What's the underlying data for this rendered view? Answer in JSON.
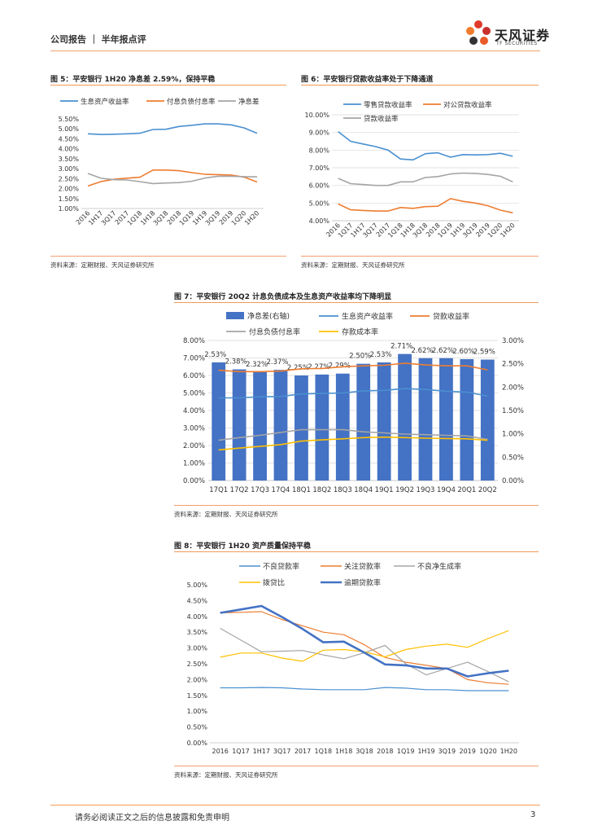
{
  "header": {
    "title": "公司报告 ｜ 半年报点评",
    "logo_cn": "天风证券",
    "logo_en": "TF SECURITIES"
  },
  "colors": {
    "blue": "#4a90d0",
    "orange": "#ed7d31",
    "gray": "#a5a5a5",
    "yellow": "#ffc000",
    "darkblue": "#4472c4",
    "accent": "#f29a5a"
  },
  "footer": {
    "disclaimer": "请务必阅读正文之后的信息披露和免责申明",
    "page": "3"
  },
  "figures": {
    "fig5": {
      "title": "图 5：平安银行 1H20 净息差 2.59%，保持平稳",
      "source": "资料来源：定期财报、天风证券研究所"
    },
    "fig6": {
      "title": "图 6：平安银行贷款收益率处于下降通道",
      "source": "资料来源：定期财报、天风证券研究所"
    },
    "fig7": {
      "title": "图 7：平安银行 20Q2 计息负债成本及生息资产收益率均下降明显",
      "source": "资料来源：定期财报、天风证券研究所"
    },
    "fig8": {
      "title": "图 8：平安银行 1H20 资产质量保持平稳",
      "source": "资料来源：定期财报、天风证券研究所"
    }
  },
  "chart_data": [
    {
      "id": "fig5",
      "type": "line",
      "categories": [
        "2016",
        "1H17",
        "3Q17",
        "2017",
        "1Q18",
        "1H18",
        "3Q18",
        "2018",
        "1Q19",
        "1H19",
        "3Q19",
        "2019",
        "1Q20",
        "1H20"
      ],
      "yticks": [
        "5.50%",
        "5.00%",
        "4.50%",
        "4.00%",
        "3.50%",
        "3.00%",
        "2.50%",
        "2.00%",
        "1.50%",
        "1.00%"
      ],
      "ylim": [
        1.0,
        5.5
      ],
      "series": [
        {
          "name": "生息资产收益率",
          "color": "#4a90d0",
          "values": [
            4.75,
            4.72,
            4.73,
            4.75,
            4.78,
            4.97,
            4.98,
            5.12,
            5.18,
            5.25,
            5.25,
            5.2,
            5.05,
            4.78
          ]
        },
        {
          "name": "付息负债付息率",
          "color": "#ed7d31",
          "values": [
            2.13,
            2.35,
            2.47,
            2.52,
            2.57,
            2.93,
            2.93,
            2.9,
            2.8,
            2.72,
            2.7,
            2.68,
            2.58,
            2.33
          ]
        },
        {
          "name": "净息差",
          "color": "#a5a5a5",
          "values": [
            2.76,
            2.52,
            2.45,
            2.43,
            2.35,
            2.25,
            2.28,
            2.3,
            2.37,
            2.53,
            2.62,
            2.62,
            2.6,
            2.59
          ]
        }
      ]
    },
    {
      "id": "fig6",
      "type": "line",
      "categories": [
        "2016",
        "1Q17",
        "1H17",
        "3Q17",
        "2017",
        "1Q18",
        "1H18",
        "3Q18",
        "2018",
        "1Q19",
        "1H19",
        "3Q19",
        "2019",
        "1Q20",
        "1H20"
      ],
      "yticks": [
        "10.00%",
        "9.00%",
        "8.00%",
        "7.00%",
        "6.00%",
        "5.00%",
        "4.00%"
      ],
      "ylim": [
        4.0,
        10.0
      ],
      "series": [
        {
          "name": "零售贷款收益率",
          "color": "#4a90d0",
          "values": [
            9.05,
            8.5,
            8.35,
            8.2,
            8.0,
            7.5,
            7.45,
            7.8,
            7.85,
            7.6,
            7.75,
            7.73,
            7.75,
            7.82,
            7.65
          ]
        },
        {
          "name": "对公贷款收益率",
          "color": "#ed7d31",
          "values": [
            4.95,
            4.62,
            4.58,
            4.55,
            4.55,
            4.75,
            4.7,
            4.8,
            4.82,
            5.25,
            5.1,
            5.0,
            4.85,
            4.6,
            4.45
          ]
        },
        {
          "name": "贷款收益率",
          "color": "#a5a5a5",
          "values": [
            6.4,
            6.1,
            6.05,
            6.0,
            6.0,
            6.2,
            6.2,
            6.45,
            6.5,
            6.65,
            6.7,
            6.68,
            6.62,
            6.52,
            6.2
          ]
        }
      ]
    },
    {
      "id": "fig7",
      "type": "bar+line",
      "categories": [
        "17Q1",
        "17Q2",
        "17Q3",
        "17Q4",
        "18Q1",
        "18Q2",
        "18Q3",
        "18Q4",
        "19Q1",
        "19Q2",
        "19Q3",
        "19Q4",
        "20Q1",
        "20Q2"
      ],
      "yticks_left": [
        "8.00%",
        "7.00%",
        "6.00%",
        "5.00%",
        "4.00%",
        "3.00%",
        "2.00%",
        "1.00%",
        "0.00%"
      ],
      "yticks_right": [
        "3.00%",
        "2.50%",
        "2.00%",
        "1.50%",
        "1.00%",
        "0.50%",
        "0.00%"
      ],
      "ylim_left": [
        0,
        8
      ],
      "ylim_right": [
        0,
        3
      ],
      "bars": {
        "name": "净息差(右轴)",
        "color": "#4472c4",
        "values": [
          2.53,
          2.38,
          2.32,
          2.37,
          2.25,
          2.27,
          2.29,
          2.5,
          2.53,
          2.71,
          2.62,
          2.62,
          2.6,
          2.59
        ],
        "labels": [
          "2.53%",
          "2.38%",
          "2.32%",
          "2.37%",
          "2.25%",
          "2.27%",
          "2.29%",
          "2.50%",
          "2.53%",
          "2.71%",
          "2.62%",
          "2.62%",
          "2.60%",
          "2.59%"
        ]
      },
      "series": [
        {
          "name": "生息资产收益率",
          "color": "#4a90d0",
          "values": [
            4.72,
            4.72,
            4.78,
            4.8,
            4.95,
            4.97,
            5.0,
            5.12,
            5.15,
            5.25,
            5.2,
            5.1,
            5.05,
            4.82
          ]
        },
        {
          "name": "贷款收益率",
          "color": "#ed7d31",
          "values": [
            6.3,
            6.22,
            6.22,
            6.25,
            6.38,
            6.4,
            6.5,
            6.55,
            6.58,
            6.7,
            6.6,
            6.55,
            6.55,
            6.32
          ]
        },
        {
          "name": "付息负债付息率",
          "color": "#a5a5a5",
          "values": [
            2.3,
            2.45,
            2.58,
            2.75,
            2.9,
            2.9,
            2.9,
            2.78,
            2.72,
            2.65,
            2.62,
            2.58,
            2.55,
            2.35
          ]
        },
        {
          "name": "存款成本率",
          "color": "#ffc000",
          "values": [
            1.75,
            1.85,
            1.95,
            2.05,
            2.25,
            2.32,
            2.38,
            2.45,
            2.48,
            2.45,
            2.42,
            2.4,
            2.38,
            2.3
          ]
        }
      ]
    },
    {
      "id": "fig8",
      "type": "line",
      "categories": [
        "2016",
        "1Q17",
        "1H17",
        "3Q17",
        "2017",
        "1Q18",
        "1H18",
        "3Q18",
        "2018",
        "1Q19",
        "1H19",
        "3Q19",
        "2019",
        "1Q20",
        "1H20"
      ],
      "yticks": [
        "5.00%",
        "4.50%",
        "4.00%",
        "3.50%",
        "3.00%",
        "2.50%",
        "2.00%",
        "1.50%",
        "1.00%",
        "0.50%",
        "0.00%"
      ],
      "ylim": [
        0,
        5
      ],
      "series": [
        {
          "name": "不良贷款率",
          "color": "#4a90d0",
          "width": 1.2,
          "values": [
            1.74,
            1.74,
            1.75,
            1.74,
            1.7,
            1.68,
            1.68,
            1.68,
            1.75,
            1.73,
            1.68,
            1.68,
            1.65,
            1.65,
            1.65
          ]
        },
        {
          "name": "关注贷款率",
          "color": "#ed7d31",
          "width": 1.2,
          "values": [
            4.11,
            4.13,
            4.15,
            3.9,
            3.7,
            3.5,
            3.42,
            3.1,
            2.7,
            2.55,
            2.45,
            2.35,
            2.0,
            1.9,
            1.85
          ]
        },
        {
          "name": "不良净生成率",
          "color": "#a5a5a5",
          "width": 1.2,
          "values": [
            3.62,
            3.25,
            2.88,
            2.9,
            2.92,
            2.78,
            2.66,
            2.85,
            3.08,
            2.5,
            2.15,
            2.35,
            2.55,
            2.25,
            1.93
          ]
        },
        {
          "name": "拨贷比",
          "color": "#ffc000",
          "width": 1.2,
          "values": [
            2.71,
            2.84,
            2.84,
            2.68,
            2.58,
            2.93,
            2.95,
            2.88,
            2.72,
            2.95,
            3.06,
            3.12,
            3.02,
            3.3,
            3.55
          ]
        },
        {
          "name": "逾期贷款率",
          "color": "#4472c4",
          "width": 2.6,
          "values": [
            4.11,
            4.22,
            4.33,
            3.98,
            3.6,
            3.18,
            3.2,
            2.85,
            2.48,
            2.45,
            2.35,
            2.35,
            2.1,
            2.2,
            2.28
          ]
        }
      ]
    }
  ]
}
